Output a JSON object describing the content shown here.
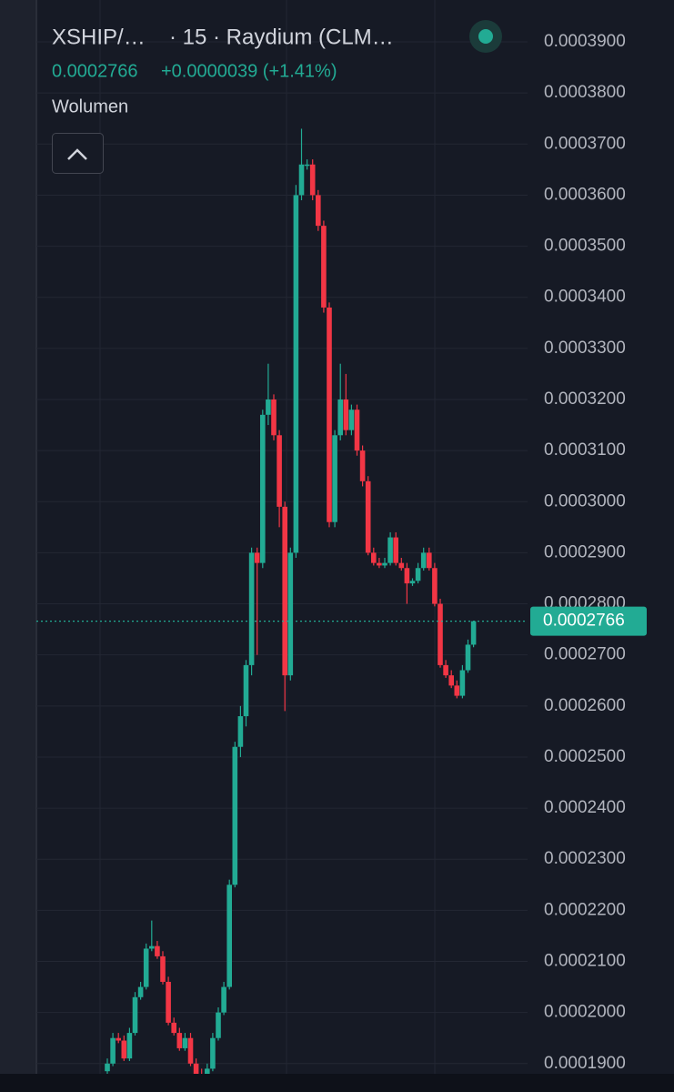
{
  "chart_data": {
    "type": "candlestick",
    "pair": "XSHIP/…",
    "subtitle": "· 15 · Raydium (CLM…",
    "last_price": 0.0002766,
    "change": "+0.0000039 (+1.41%)",
    "volume_label": "Wolumen",
    "up_color": "#22ab94",
    "down_color": "#f23645",
    "ylim": [
      0.000188,
      0.0003982
    ],
    "yticks": [
      {
        "value": 0.00039,
        "label": "0.0003900"
      },
      {
        "value": 0.00038,
        "label": "0.0003800"
      },
      {
        "value": 0.00037,
        "label": "0.0003700"
      },
      {
        "value": 0.00036,
        "label": "0.0003600"
      },
      {
        "value": 0.00035,
        "label": "0.0003500"
      },
      {
        "value": 0.00034,
        "label": "0.0003400"
      },
      {
        "value": 0.00033,
        "label": "0.0003300"
      },
      {
        "value": 0.00032,
        "label": "0.0003200"
      },
      {
        "value": 0.00031,
        "label": "0.0003100"
      },
      {
        "value": 0.0003,
        "label": "0.0003000"
      },
      {
        "value": 0.00029,
        "label": "0.0002900"
      },
      {
        "value": 0.00028,
        "label": "0.0002800"
      },
      {
        "value": 0.00027,
        "label": "0.0002700"
      },
      {
        "value": 0.00026,
        "label": "0.0002600"
      },
      {
        "value": 0.00025,
        "label": "0.0002500"
      },
      {
        "value": 0.00024,
        "label": "0.0002400"
      },
      {
        "value": 0.00023,
        "label": "0.0002300"
      },
      {
        "value": 0.00022,
        "label": "0.0002200"
      },
      {
        "value": 0.00021,
        "label": "0.0002100"
      },
      {
        "value": 0.0002,
        "label": "0.0002000"
      },
      {
        "value": 0.00019,
        "label": "0.0001900"
      }
    ],
    "grid": true,
    "open": [
      0.0001885,
      0.00019,
      0.000195,
      0.0001945,
      0.000191,
      0.000196,
      0.000203,
      0.000205,
      0.0002125,
      0.000213,
      0.000211,
      0.000206,
      0.000198,
      0.000196,
      0.000193,
      0.000195,
      0.00019,
      0.000188,
      0.000187,
      0.000189,
      0.000195,
      0.0002,
      0.000205,
      0.000225,
      0.000252,
      0.000258,
      0.000268,
      0.00029,
      0.000288,
      0.000317,
      0.00032,
      0.000313,
      0.000299,
      0.000266,
      0.00029,
      0.00036,
      0.000366,
      0.000366,
      0.00036,
      0.000354,
      0.000338,
      0.000296,
      0.000313,
      0.00032,
      0.000314,
      0.000318,
      0.00031,
      0.000304,
      0.00029,
      0.000288,
      0.0002875,
      0.000288,
      0.000293,
      0.000288,
      0.000287,
      0.000284,
      0.0002845,
      0.000287,
      0.00029,
      0.000287,
      0.00028,
      0.000268,
      0.000266,
      0.000264,
      0.000262,
      0.000267,
      0.000272
    ],
    "high": [
      0.000191,
      0.000196,
      0.000196,
      0.0001955,
      0.000197,
      0.000204,
      0.000206,
      0.0002135,
      0.000218,
      0.000214,
      0.000212,
      0.000207,
      0.000199,
      0.000197,
      0.000196,
      0.000196,
      0.000191,
      0.000189,
      0.00019,
      0.000196,
      0.000201,
      0.000206,
      0.000226,
      0.000253,
      0.00026,
      0.000269,
      0.000291,
      0.000291,
      0.000318,
      0.000327,
      0.000321,
      0.000314,
      0.0003,
      0.000291,
      0.000362,
      0.000373,
      0.000367,
      0.000367,
      0.000361,
      0.000355,
      0.000339,
      0.000314,
      0.000327,
      0.000325,
      0.000319,
      0.000319,
      0.000311,
      0.000305,
      0.000291,
      0.000289,
      0.000289,
      0.000294,
      0.000294,
      0.000289,
      0.000288,
      0.000285,
      0.000288,
      0.000291,
      0.000291,
      0.000288,
      0.000281,
      0.000269,
      0.000267,
      0.000265,
      0.000268,
      0.000273,
      0.0002766
    ],
    "low": [
      0.000188,
      0.0001895,
      0.000194,
      0.0001905,
      0.0001905,
      0.0001955,
      0.0002025,
      0.0002045,
      0.000212,
      0.0002105,
      0.0002055,
      0.0001975,
      0.0001955,
      0.0001925,
      0.0001925,
      0.0001895,
      0.0001875,
      0.0001865,
      0.0001865,
      0.0001885,
      0.0001945,
      0.0001995,
      0.0002045,
      0.0002245,
      0.00025,
      0.000256,
      0.000266,
      0.00027,
      0.000287,
      0.000315,
      0.000312,
      0.000295,
      0.000259,
      0.000265,
      0.000289,
      0.000359,
      0.000365,
      0.000359,
      0.000353,
      0.000337,
      0.000295,
      0.000295,
      0.000312,
      0.000313,
      0.000313,
      0.000309,
      0.000303,
      0.0002895,
      0.0002875,
      0.000287,
      0.000287,
      0.0002875,
      0.0002875,
      0.0002865,
      0.00028,
      0.0002835,
      0.000284,
      0.0002865,
      0.0002865,
      0.0002795,
      0.0002675,
      0.0002655,
      0.0002635,
      0.0002615,
      0.0002615,
      0.0002665,
      0.0002715
    ],
    "close": [
      0.00019,
      0.000195,
      0.0001945,
      0.000191,
      0.000196,
      0.000203,
      0.000205,
      0.0002125,
      0.000213,
      0.000211,
      0.000206,
      0.000198,
      0.000196,
      0.000193,
      0.000195,
      0.00019,
      0.000188,
      0.000187,
      0.000189,
      0.000195,
      0.0002,
      0.000205,
      0.000225,
      0.000252,
      0.000258,
      0.000268,
      0.00029,
      0.000288,
      0.000317,
      0.00032,
      0.000313,
      0.000299,
      0.000266,
      0.00029,
      0.00036,
      0.000366,
      0.000366,
      0.00036,
      0.000354,
      0.000338,
      0.000296,
      0.000313,
      0.00032,
      0.000314,
      0.000318,
      0.00031,
      0.000304,
      0.00029,
      0.000288,
      0.0002875,
      0.000288,
      0.000293,
      0.000288,
      0.000287,
      0.000284,
      0.0002845,
      0.000287,
      0.00029,
      0.000287,
      0.00028,
      0.000268,
      0.000266,
      0.000264,
      0.000262,
      0.000267,
      0.000272,
      0.0002766
    ]
  }
}
